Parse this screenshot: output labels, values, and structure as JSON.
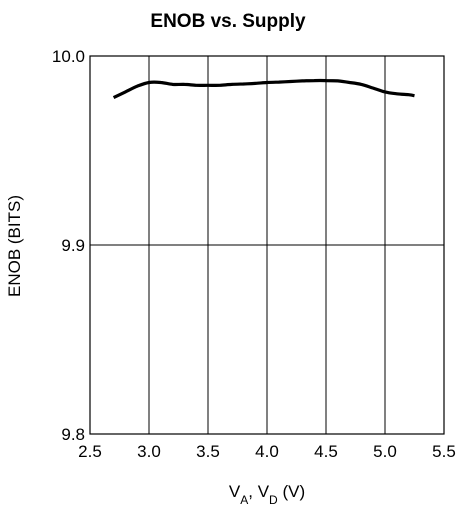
{
  "chart_data": {
    "type": "line",
    "title": "ENOB vs. Supply",
    "xlabel": {
      "parts": [
        {
          "text": "V",
          "sub": false
        },
        {
          "text": "A",
          "sub": true
        },
        {
          "text": ", V",
          "sub": false
        },
        {
          "text": "D",
          "sub": true
        },
        {
          "text": " (V)",
          "sub": false
        }
      ]
    },
    "ylabel": "ENOB (BITS)",
    "xlim": [
      2.5,
      5.5
    ],
    "ylim": [
      9.8,
      10.0
    ],
    "xticks": [
      2.5,
      3.0,
      3.5,
      4.0,
      4.5,
      5.0,
      5.5
    ],
    "xtick_labels": [
      "2.5",
      "3.0",
      "3.5",
      "4.0",
      "4.5",
      "5.0",
      "5.5"
    ],
    "yticks": [
      9.8,
      9.9,
      10.0
    ],
    "ytick_labels": [
      "9.8",
      "9.9",
      "10.0"
    ],
    "grid": true,
    "series": [
      {
        "color": "#000000",
        "x": [
          2.7,
          2.8,
          2.9,
          3.0,
          3.1,
          3.2,
          3.3,
          3.4,
          3.5,
          3.6,
          3.7,
          3.8,
          3.9,
          4.0,
          4.1,
          4.2,
          4.3,
          4.4,
          4.5,
          4.6,
          4.7,
          4.8,
          4.9,
          5.0,
          5.1,
          5.2,
          5.25
        ],
        "y": [
          9.978,
          9.981,
          9.984,
          9.986,
          9.986,
          9.985,
          9.985,
          9.9845,
          9.9845,
          9.9845,
          9.985,
          9.9852,
          9.9855,
          9.986,
          9.9862,
          9.9865,
          9.9868,
          9.987,
          9.987,
          9.9868,
          9.986,
          9.985,
          9.983,
          9.981,
          9.98,
          9.9795,
          9.979
        ]
      }
    ]
  }
}
